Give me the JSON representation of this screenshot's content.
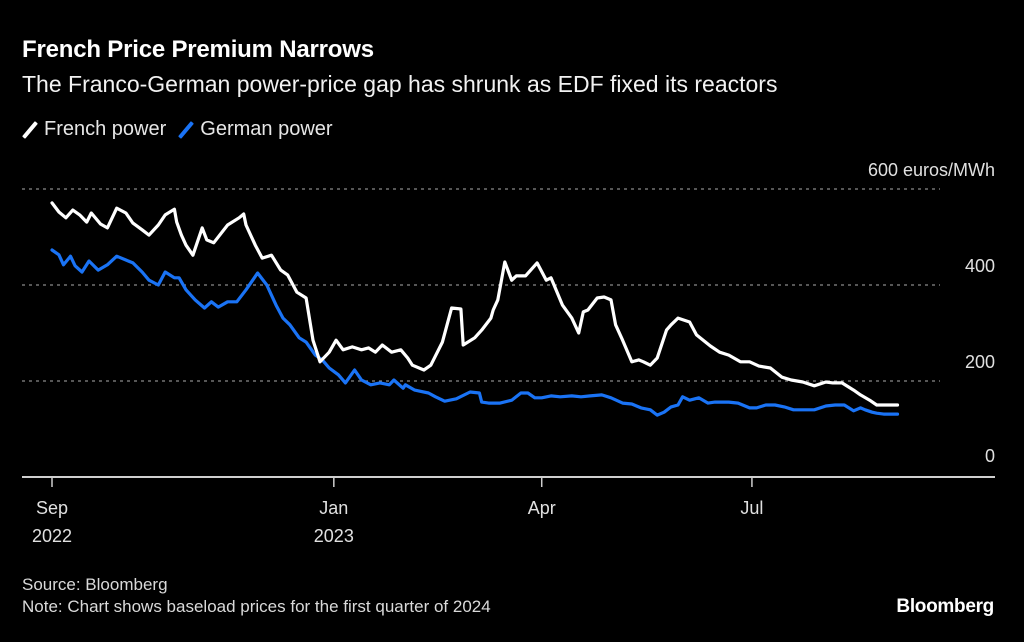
{
  "header": {
    "title": "French Price Premium Narrows",
    "subtitle": "The Franco-German power-price gap has shrunk as EDF fixed its reactors"
  },
  "legend": [
    {
      "label": "French power",
      "color": "#ffffff"
    },
    {
      "label": "German power",
      "color": "#1a73f5"
    }
  ],
  "footer": {
    "source": "Source: Bloomberg",
    "note": "Note: Chart shows baseload prices for the first quarter of 2024",
    "brand": "Bloomberg"
  },
  "chart_data": {
    "type": "line",
    "title": "French Price Premium Narrows",
    "subtitle": "The Franco-German power-price gap has shrunk as EDF fixed its reactors",
    "xlabel": "",
    "ylabel": "euros/MWh",
    "y_unit_label": "600 euros/MWh",
    "ylim": [
      0,
      600
    ],
    "yticks": [
      0,
      200,
      400,
      600
    ],
    "ytick_labels": [
      "0",
      "200",
      "400",
      "600 euros/MWh"
    ],
    "grid": true,
    "legend_position": "top-left",
    "x_start_date": "2022-09-01",
    "x_unit": "days since 2022-09-01",
    "xlim_days": [
      0,
      400
    ],
    "xticks": [
      {
        "day": 0,
        "label": "Sep",
        "sublabel": "2022"
      },
      {
        "day": 122,
        "label": "Jan",
        "sublabel": "2023"
      },
      {
        "day": 212,
        "label": "Apr",
        "sublabel": ""
      },
      {
        "day": 303,
        "label": "Jul",
        "sublabel": ""
      }
    ],
    "series": [
      {
        "name": "French power",
        "color": "#ffffff",
        "x": [
          0,
          3,
          6,
          9,
          12,
          15,
          17,
          21,
          24,
          28,
          32,
          35,
          39,
          42,
          46,
          49,
          53,
          54,
          56,
          58,
          61,
          65,
          67,
          70,
          76,
          81,
          83,
          84,
          88,
          91,
          95,
          99,
          102,
          106,
          110,
          113,
          116,
          120,
          123,
          126,
          130,
          134,
          137,
          140,
          143,
          147,
          151,
          154,
          156,
          161,
          164,
          169,
          173,
          177,
          178,
          183,
          186,
          190,
          191,
          193,
          196,
          199,
          201,
          205,
          210,
          214,
          216,
          221,
          225,
          228,
          230,
          232,
          236,
          239,
          242,
          244,
          247,
          251,
          254,
          256,
          259,
          262,
          266,
          268,
          271,
          276,
          279,
          285,
          289,
          293,
          298,
          302,
          306,
          311,
          316,
          320,
          325,
          330,
          335,
          338,
          342,
          347,
          350,
          354,
          357,
          361,
          364,
          366
        ],
        "values": [
          571,
          552,
          540,
          556,
          546,
          531,
          550,
          527,
          519,
          560,
          550,
          529,
          515,
          504,
          525,
          546,
          558,
          531,
          504,
          483,
          462,
          519,
          494,
          488,
          525,
          540,
          548,
          525,
          483,
          456,
          462,
          431,
          421,
          385,
          373,
          285,
          240,
          260,
          285,
          265,
          271,
          265,
          269,
          260,
          275,
          260,
          265,
          248,
          233,
          223,
          233,
          281,
          352,
          350,
          275,
          290,
          306,
          331,
          348,
          369,
          448,
          410,
          419,
          419,
          446,
          410,
          415,
          358,
          331,
          300,
          344,
          348,
          373,
          375,
          369,
          317,
          285,
          240,
          244,
          240,
          233,
          248,
          306,
          317,
          331,
          323,
          296,
          273,
          260,
          254,
          240,
          240,
          231,
          227,
          208,
          202,
          198,
          190,
          198,
          196,
          196,
          181,
          171,
          160,
          150,
          150,
          150,
          150
        ]
      },
      {
        "name": "German power",
        "color": "#1a73f5",
        "x": [
          0,
          3,
          5,
          8,
          10,
          13,
          16,
          20,
          24,
          28,
          32,
          35,
          39,
          42,
          46,
          49,
          53,
          55,
          58,
          62,
          66,
          69,
          72,
          76,
          80,
          84,
          86,
          89,
          93,
          97,
          100,
          103,
          107,
          110,
          114,
          117,
          120,
          124,
          127,
          131,
          134,
          138,
          142,
          146,
          148,
          152,
          153,
          157,
          159,
          163,
          166,
          170,
          175,
          181,
          185,
          186,
          189,
          190,
          194,
          199,
          203,
          206,
          209,
          212,
          216,
          220,
          225,
          229,
          233,
          238,
          242,
          247,
          251,
          255,
          259,
          262,
          265,
          268,
          271,
          273,
          276,
          280,
          284,
          287,
          293,
          297,
          302,
          305,
          309,
          313,
          317,
          321,
          326,
          330,
          335,
          339,
          343,
          347,
          350,
          352,
          355,
          357,
          360,
          362,
          364,
          366
        ],
        "values": [
          473,
          463,
          442,
          460,
          440,
          427,
          450,
          431,
          442,
          460,
          452,
          446,
          427,
          410,
          400,
          427,
          415,
          415,
          390,
          369,
          352,
          365,
          354,
          365,
          365,
          390,
          404,
          425,
          400,
          358,
          331,
          317,
          290,
          281,
          254,
          244,
          227,
          213,
          196,
          223,
          202,
          192,
          196,
          192,
          202,
          185,
          192,
          181,
          179,
          175,
          167,
          158,
          163,
          177,
          175,
          156,
          154,
          154,
          154,
          160,
          175,
          175,
          165,
          165,
          169,
          167,
          169,
          167,
          169,
          171,
          165,
          154,
          152,
          144,
          140,
          129,
          135,
          146,
          150,
          167,
          160,
          165,
          154,
          156,
          156,
          154,
          144,
          144,
          150,
          150,
          146,
          140,
          140,
          140,
          148,
          150,
          150,
          138,
          144,
          140,
          135,
          133,
          131,
          131,
          131,
          131
        ]
      }
    ]
  }
}
